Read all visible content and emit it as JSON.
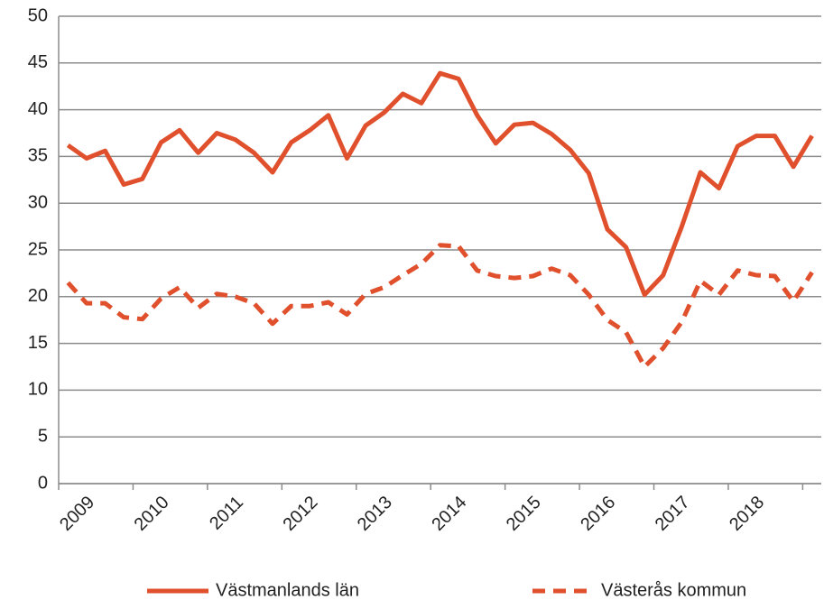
{
  "chart_data": {
    "type": "line",
    "categories": [
      null,
      "2009",
      null,
      null,
      null,
      "2010",
      null,
      null,
      null,
      "2011",
      null,
      null,
      null,
      "2012",
      null,
      null,
      null,
      "2013",
      null,
      null,
      null,
      "2014",
      null,
      null,
      null,
      "2015",
      null,
      null,
      null,
      "2016",
      null,
      null,
      null,
      "2017",
      null,
      null,
      null,
      "2018",
      null,
      null,
      null
    ],
    "series": [
      {
        "name": "Västmanlands län",
        "color": "#e0502d",
        "dash": false,
        "values": [
          36.2,
          34.8,
          35.6,
          32,
          32.6,
          36.5,
          37.8,
          35.4,
          37.5,
          36.8,
          35.4,
          33.3,
          36.5,
          37.8,
          39.4,
          34.8,
          38.3,
          39.7,
          41.7,
          40.7,
          43.9,
          43.3,
          39.4,
          36.4,
          38.4,
          38.6,
          37.4,
          35.7,
          33.2,
          27.2,
          25.3,
          20.2,
          22.3,
          27.5,
          33.3,
          31.6,
          36.1,
          37.2,
          37.2,
          33.9,
          37.2
        ]
      },
      {
        "name": "Västerås kommun",
        "color": "#e0502d",
        "dash": true,
        "values": [
          21.5,
          19.3,
          19.3,
          17.8,
          17.6,
          19.8,
          21,
          18.8,
          20.3,
          20,
          19.3,
          17.1,
          19,
          19,
          19.4,
          18.1,
          20.3,
          21,
          22.3,
          23.5,
          25.5,
          25.4,
          22.8,
          22.2,
          22,
          22.2,
          23,
          22.3,
          20.2,
          17.5,
          16.2,
          12.5,
          14.5,
          17.3,
          21.7,
          20.2,
          22.8,
          22.3,
          22.2,
          19.5,
          22.6
        ]
      }
    ],
    "ylim": [
      0,
      50
    ],
    "yticks": [
      0,
      5,
      10,
      15,
      20,
      25,
      30,
      35,
      40,
      45,
      50
    ],
    "grid": true
  }
}
